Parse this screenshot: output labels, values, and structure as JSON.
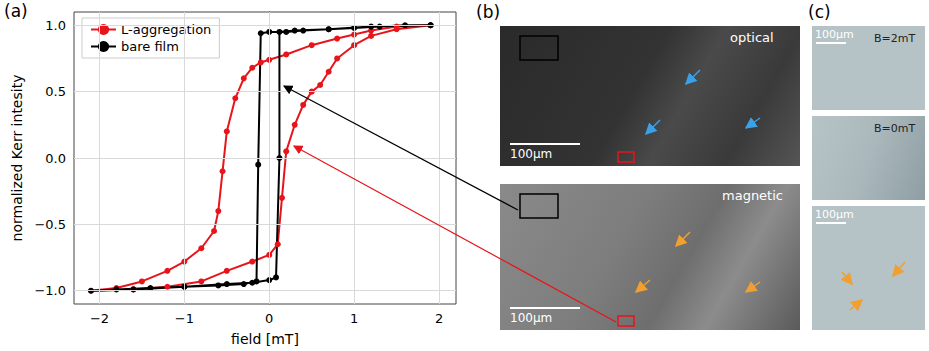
{
  "chart_data": {
    "type": "line",
    "x_label": "field [mT]",
    "y_label": "normalized Kerr intesity",
    "xlim": [
      -2.3,
      2.2
    ],
    "xticks": [
      {
        "value": -2,
        "label": "−2"
      },
      {
        "value": -1,
        "label": "−1"
      },
      0,
      1,
      2
    ],
    "ylim": [
      -1.1,
      1.1
    ],
    "yticks": [
      {
        "value": -1,
        "label": "−1.0"
      },
      {
        "value": -0.5,
        "label": "−0.5"
      },
      {
        "value": 0,
        "label": "0.0"
      },
      {
        "value": 0.5,
        "label": "0.5"
      },
      {
        "value": 1,
        "label": "1.0"
      }
    ],
    "grid": true,
    "legend": "upper left",
    "series": [
      {
        "name": "L-aggregation",
        "color": "#e8141b",
        "marker": "circle",
        "x": [
          1.9,
          1.5,
          1.2,
          1.0,
          0.8,
          0.5,
          0.2,
          0.0,
          -0.1,
          -0.2,
          -0.3,
          -0.4,
          -0.5,
          -0.55,
          -0.6,
          -0.65,
          -0.8,
          -1.0,
          -1.2,
          -1.5,
          -1.8,
          -2.1,
          -1.6,
          -1.2,
          -0.8,
          -0.5,
          -0.2,
          0.0,
          0.1,
          0.15,
          0.2,
          0.3,
          0.4,
          0.5,
          0.6,
          0.7,
          0.8,
          1.0,
          1.2,
          1.5,
          1.9
        ],
        "values": [
          1.0,
          0.99,
          0.96,
          0.93,
          0.9,
          0.85,
          0.78,
          0.74,
          0.72,
          0.68,
          0.6,
          0.45,
          0.2,
          -0.1,
          -0.4,
          -0.55,
          -0.68,
          -0.78,
          -0.85,
          -0.93,
          -0.98,
          -1.0,
          -0.99,
          -0.97,
          -0.93,
          -0.85,
          -0.78,
          -0.73,
          -0.65,
          -0.3,
          0.05,
          0.25,
          0.4,
          0.5,
          0.55,
          0.65,
          0.75,
          0.85,
          0.92,
          0.97,
          1.0
        ]
      },
      {
        "name": "bare film",
        "color": "#000000",
        "marker": "circle",
        "x": [
          1.9,
          1.6,
          1.3,
          1.0,
          0.7,
          0.4,
          0.2,
          0.0,
          -0.1,
          -0.13,
          -0.15,
          -0.3,
          -0.6,
          -1.0,
          -1.4,
          -1.8,
          -2.1,
          -1.6,
          -1.0,
          -0.5,
          -0.2,
          0.0,
          0.08,
          0.12,
          0.12,
          0.3,
          0.7,
          1.2,
          1.9
        ],
        "values": [
          1.0,
          1.0,
          0.99,
          0.98,
          0.97,
          0.96,
          0.95,
          0.95,
          0.94,
          -0.05,
          -0.93,
          -0.95,
          -0.96,
          -0.97,
          -0.98,
          -0.99,
          -1.0,
          -0.99,
          -0.97,
          -0.95,
          -0.94,
          -0.92,
          -0.9,
          0.0,
          0.95,
          0.96,
          0.97,
          0.99,
          1.0
        ]
      }
    ]
  },
  "panel_labels": {
    "a": "(a)",
    "b": "(b)",
    "c": "(c)"
  },
  "panel_b": {
    "optical": {
      "caption": "optical",
      "scale_bar": "100μm"
    },
    "magnetic": {
      "caption": "magnetic",
      "scale_bar": "100μm"
    }
  },
  "panel_c": {
    "frames": [
      {
        "scale_bar": "100μm",
        "field": "B=2mT"
      },
      {
        "field": "B=0mT"
      },
      {
        "scale_bar": "100μm"
      }
    ]
  }
}
